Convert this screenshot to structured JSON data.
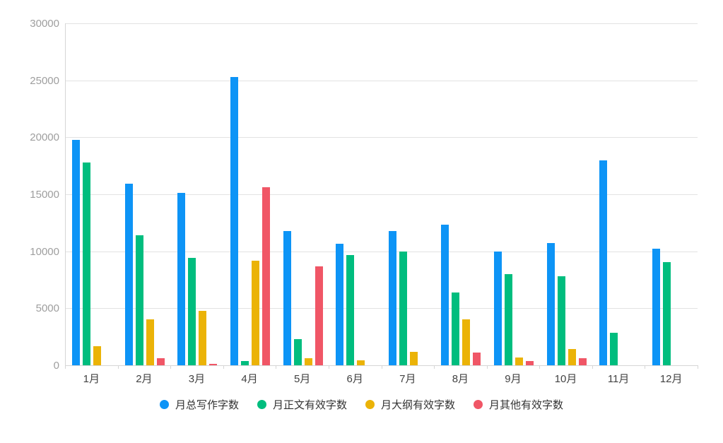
{
  "chart_data": {
    "type": "bar",
    "title": "",
    "xlabel": "",
    "ylabel": "",
    "categories": [
      "1月",
      "2月",
      "3月",
      "4月",
      "5月",
      "6月",
      "7月",
      "8月",
      "9月",
      "10月",
      "11月",
      "12月"
    ],
    "series": [
      {
        "name": "月总写作字数",
        "color": "#0d94f6",
        "values": [
          19800,
          15900,
          15100,
          25300,
          11800,
          10650,
          11750,
          12350,
          9950,
          10750,
          18000,
          10200
        ]
      },
      {
        "name": "月正文有效字数",
        "color": "#00bd7e",
        "values": [
          17800,
          11400,
          9400,
          400,
          2300,
          9650,
          9950,
          6400,
          8000,
          7800,
          2850,
          9050
        ]
      },
      {
        "name": "月大纲有效字数",
        "color": "#ebb307",
        "values": [
          1700,
          4000,
          4800,
          9200,
          650,
          450,
          1150,
          4050,
          700,
          1400,
          0,
          0
        ]
      },
      {
        "name": "月其他有效字数",
        "color": "#f05666",
        "values": [
          0,
          650,
          120,
          15600,
          8700,
          0,
          0,
          1100,
          400,
          650,
          0,
          0
        ]
      }
    ],
    "ylim": [
      0,
      30000
    ],
    "yticks": [
      0,
      5000,
      10000,
      15000,
      20000,
      25000,
      30000
    ],
    "grid": true,
    "legend_position": "bottom",
    "axis_colors": {
      "gridline": "#e2e2e2",
      "axis_line": "#d6d6d6",
      "y_tick_label": "#9e9e9e",
      "x_tick_label": "#424242",
      "legend_text": "#333333"
    }
  }
}
